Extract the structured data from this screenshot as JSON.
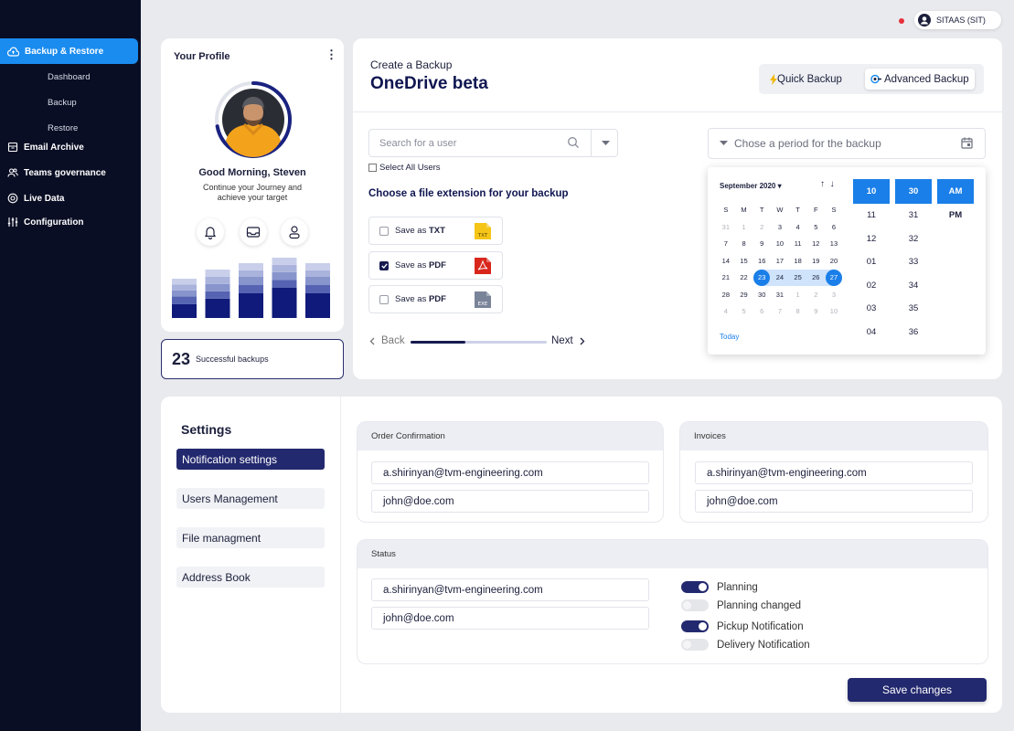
{
  "sidebar": {
    "active_label": "Backup & Restore",
    "subitems": [
      "Dashboard",
      "Backup",
      "Restore"
    ],
    "items": [
      "Email Archive",
      "Teams governance",
      "Live Data",
      "Configuration"
    ]
  },
  "topbar": {
    "user_label": "SITAAS (SIT)"
  },
  "profile": {
    "title": "Your Profile",
    "greeting": "Good Morning, Steven",
    "subtext": "Continue your Journey and achieve your target",
    "progress_ring_fraction": 0.72,
    "bars": [
      {
        "segments": [
          0.35,
          0.2,
          0.15,
          0.15,
          0.15
        ]
      },
      {
        "segments": [
          0.4,
          0.15,
          0.15,
          0.15,
          0.15
        ]
      },
      {
        "segments": [
          0.45,
          0.15,
          0.15,
          0.12,
          0.13
        ]
      },
      {
        "segments": [
          0.5,
          0.13,
          0.13,
          0.12,
          0.12
        ]
      },
      {
        "segments": [
          0.45,
          0.15,
          0.15,
          0.12,
          0.13
        ]
      }
    ]
  },
  "stats": {
    "value": "23",
    "label": "Successful backups"
  },
  "backup": {
    "subtitle": "Create a Backup",
    "title": "OneDrive beta",
    "quick_label": "Quick Backup",
    "advanced_label": "Advanced Backup",
    "search_placeholder": "Search for a user",
    "select_all_label": "Select All Users",
    "extension_title": "Choose a file extension for your backup",
    "options": [
      {
        "prefix": "Save as ",
        "ext": "TXT",
        "checked": false,
        "icon_text": "TXT",
        "icon_color": "#f5c518"
      },
      {
        "prefix": "Save as ",
        "ext": "PDF",
        "checked": true,
        "icon_text": "",
        "icon_color": "#d9261c"
      },
      {
        "prefix": "Save as ",
        "ext": "PDF",
        "checked": false,
        "icon_text": "EXE",
        "icon_color": "#7a8499"
      }
    ],
    "back_label": "Back",
    "next_label": "Next",
    "progress_fraction": 0.4,
    "period_placeholder": "Chose a period for the backup",
    "calendar": {
      "month": "September 2020",
      "weekdays": [
        "S",
        "M",
        "T",
        "W",
        "T",
        "F",
        "S"
      ],
      "weeks": [
        [
          "31",
          "1",
          "2",
          "3",
          "4",
          "5",
          "6"
        ],
        [
          "7",
          "8",
          "9",
          "10",
          "11",
          "12",
          "13"
        ],
        [
          "14",
          "15",
          "16",
          "17",
          "18",
          "19",
          "20"
        ],
        [
          "21",
          "22",
          "23",
          "24",
          "25",
          "26",
          "27"
        ],
        [
          "28",
          "29",
          "30",
          "31",
          "1",
          "2",
          "3"
        ],
        [
          "4",
          "5",
          "6",
          "7",
          "8",
          "9",
          "10"
        ]
      ],
      "muted": [
        [
          0,
          0
        ],
        [
          0,
          1
        ],
        [
          0,
          2
        ],
        [
          4,
          4
        ],
        [
          4,
          5
        ],
        [
          4,
          6
        ],
        [
          5,
          0
        ],
        [
          5,
          1
        ],
        [
          5,
          2
        ],
        [
          5,
          3
        ],
        [
          5,
          4
        ],
        [
          5,
          5
        ],
        [
          5,
          6
        ]
      ],
      "range_week": 3,
      "range_start_col": 2,
      "range_end_col": 6,
      "today_label": "Today"
    },
    "time": {
      "hour_selected": "10",
      "hours": [
        "11",
        "12",
        "01",
        "02",
        "03",
        "04"
      ],
      "minute_selected": "30",
      "minutes": [
        "31",
        "32",
        "33",
        "34",
        "35",
        "36"
      ],
      "ampm_selected": "AM",
      "ampm_other": "PM"
    }
  },
  "settings": {
    "title": "Settings",
    "tabs": [
      "Notification settings",
      "Users Management",
      "File managment",
      "Address Book"
    ],
    "order": {
      "label": "Order Confirmation",
      "emails": [
        "a.shirinyan@tvm-engineering.com",
        "john@doe.com"
      ]
    },
    "invoices": {
      "label": "Invoices",
      "emails": [
        "a.shirinyan@tvm-engineering.com",
        "john@doe.com"
      ]
    },
    "status": {
      "label": "Status",
      "emails": [
        "a.shirinyan@tvm-engineering.com",
        "john@doe.com"
      ],
      "toggles": [
        {
          "label": "Planning",
          "on": true
        },
        {
          "label": "Planning changed",
          "on": false
        },
        {
          "label": "Pickup Notification",
          "on": true
        },
        {
          "label": "Delivery Notification",
          "on": false
        }
      ]
    },
    "save_label": "Save changes"
  },
  "colors": {
    "accent": "#1a8cf0",
    "navy": "#23296e",
    "sidebar": "#0a0e24"
  }
}
